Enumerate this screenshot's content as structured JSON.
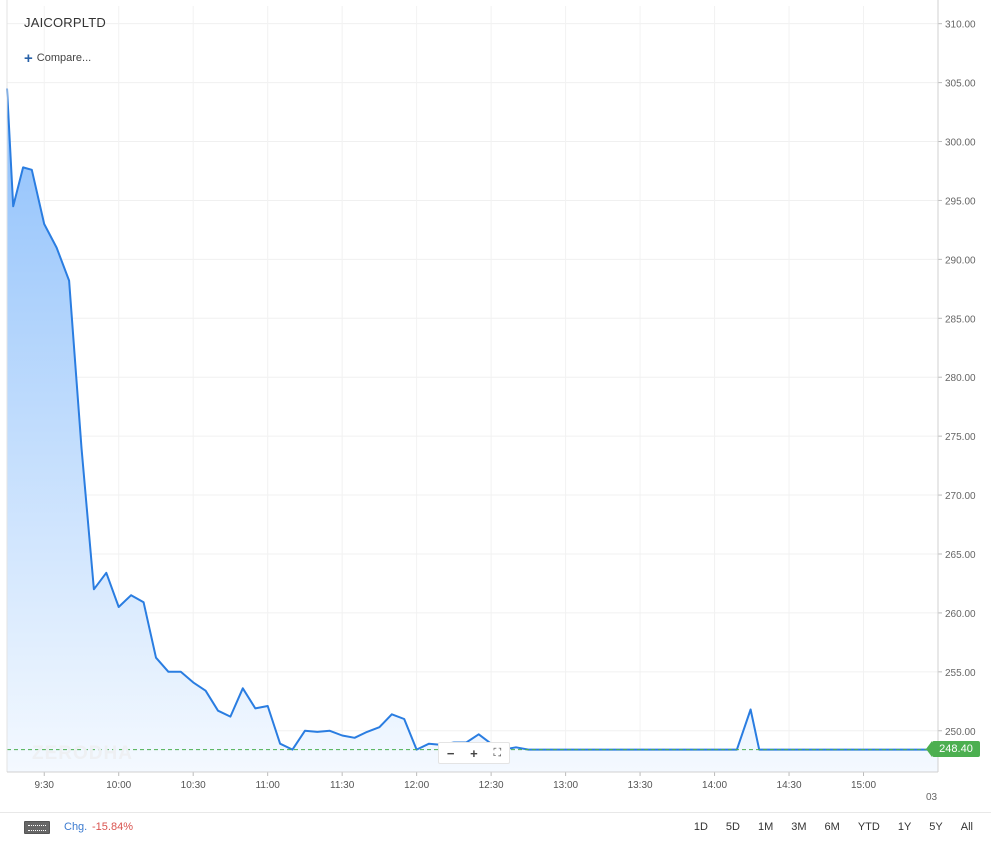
{
  "header": {
    "symbol": "JAICORPLTD",
    "compare_label": "Compare..."
  },
  "watermark": "ZERODHA",
  "zoom_controls": {
    "zoom_out": "−",
    "zoom_in": "+",
    "fit": "⛶"
  },
  "current_price_label": "248.40",
  "date_stub": "03",
  "footer": {
    "change_label": "Chg.",
    "change_value": "-15.84%",
    "ranges": [
      "1D",
      "5D",
      "1M",
      "3M",
      "6M",
      "YTD",
      "1Y",
      "5Y",
      "All"
    ]
  },
  "colors": {
    "line": "#2a7de1",
    "area_top": "#8ec0fb",
    "area_bottom": "#f4f9ff",
    "price_tag": "#4caf50",
    "change_negative": "#d9534f"
  },
  "chart_data": {
    "type": "area",
    "y_axis_side": "right",
    "ylim": [
      246.5,
      311.5
    ],
    "yticks": [
      250,
      255,
      260,
      265,
      270,
      275,
      280,
      285,
      290,
      295,
      300,
      305,
      310
    ],
    "ytick_labels": [
      "250.00",
      "255.00",
      "260.00",
      "265.00",
      "270.00",
      "275.00",
      "280.00",
      "285.00",
      "290.00",
      "295.00",
      "300.00",
      "305.00",
      "310.00"
    ],
    "xlim": [
      9.25,
      15.5
    ],
    "xticks": [
      9.5,
      10,
      10.5,
      11,
      11.5,
      12,
      12.5,
      13,
      13.5,
      14,
      14.5,
      15
    ],
    "xtick_labels": [
      "9:30",
      "10:00",
      "10:30",
      "11:00",
      "11:30",
      "12:00",
      "12:30",
      "13:00",
      "13:30",
      "14:00",
      "14:30",
      "15:00"
    ],
    "grid": true,
    "reference_line": 248.4,
    "series": [
      {
        "x": [
          9.25,
          9.2917,
          9.3583,
          9.4167,
          9.5,
          9.5833,
          9.6667,
          9.75,
          9.8333,
          9.9167,
          10.0,
          10.0833,
          10.1667,
          10.25,
          10.3333,
          10.4167,
          10.5,
          10.5833,
          10.6667,
          10.75,
          10.8333,
          10.9167,
          11.0,
          11.0833,
          11.1667,
          11.25,
          11.3333,
          11.4167,
          11.5,
          11.5833,
          11.6667,
          11.75,
          11.8333,
          11.9167,
          12.0,
          12.0833,
          12.1667,
          12.25,
          12.3333,
          12.4167,
          12.5,
          12.5833,
          12.6667,
          12.75,
          13.0,
          13.5,
          14.0,
          14.15,
          14.2417,
          14.3,
          14.5,
          15.0,
          15.5
        ],
        "y": [
          304.5,
          294.5,
          297.8,
          297.6,
          293.0,
          291.0,
          288.2,
          274.0,
          262.0,
          263.4,
          260.5,
          261.5,
          260.9,
          256.2,
          255.0,
          255.0,
          254.1,
          253.4,
          251.7,
          251.2,
          253.6,
          251.9,
          252.1,
          248.9,
          248.4,
          250.0,
          249.9,
          250.0,
          249.6,
          249.4,
          249.9,
          250.3,
          251.4,
          251.0,
          248.4,
          248.9,
          248.8,
          249.0,
          249.0,
          249.7,
          248.9,
          248.4,
          248.6,
          248.4,
          248.4,
          248.4,
          248.4,
          248.4,
          251.8,
          248.4,
          248.4,
          248.4,
          248.4
        ]
      }
    ]
  }
}
